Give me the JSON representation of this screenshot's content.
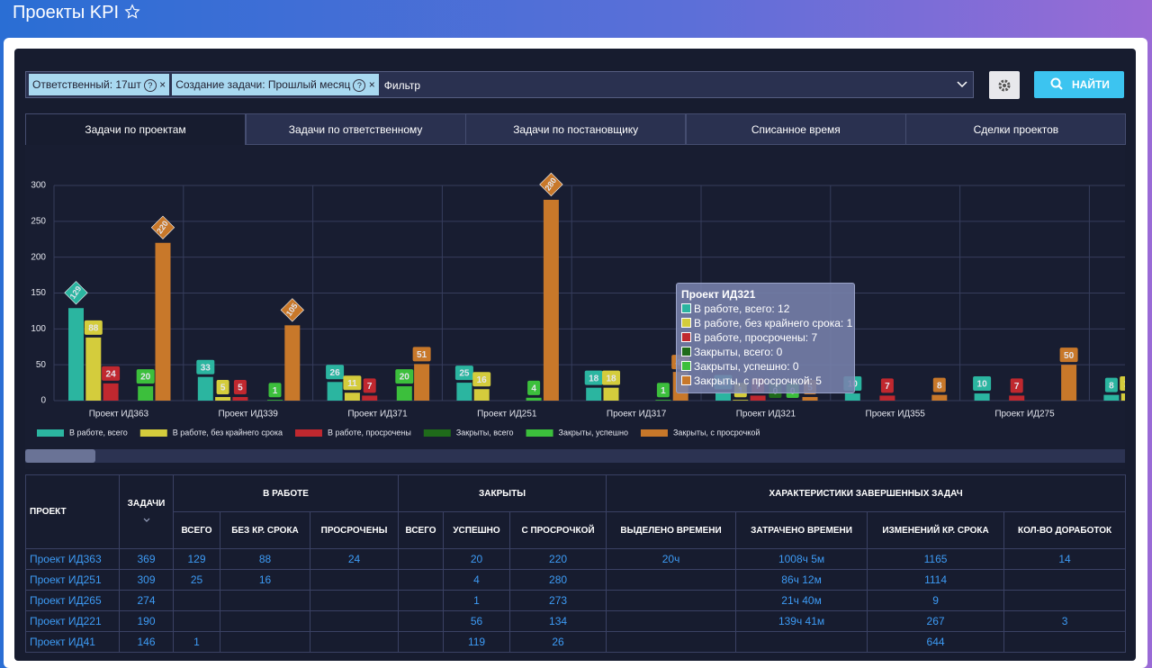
{
  "header": {
    "title": "Проекты KPI"
  },
  "filter": {
    "chips": [
      "Ответственный: 17шт",
      "Создание задачи: Прошлый месяц"
    ],
    "placeholder": "Фильтр"
  },
  "search_button": "НАЙТИ",
  "tabs": [
    "Задачи по проектам",
    "Задачи по ответственному",
    "Задачи по постановщику",
    "Списанное время",
    "Сделки проектов"
  ],
  "chart_data": {
    "type": "bar",
    "categories": [
      "Проект ИД363",
      "Проект ИД339",
      "Проект ИД371",
      "Проект ИД251",
      "Проект ИД317",
      "Проект ИД321",
      "Проект ИД355",
      "Проект ИД275",
      null
    ],
    "series": [
      {
        "name": "В работе, всего",
        "color": "#2bb5a0",
        "values": [
          129,
          33,
          26,
          25,
          18,
          12,
          10,
          10,
          8
        ]
      },
      {
        "name": "В работе, без крайнего срока",
        "color": "#d4cc3c",
        "values": [
          88,
          5,
          11,
          16,
          18,
          1,
          null,
          null,
          10
        ]
      },
      {
        "name": "В работе, просрочены",
        "color": "#c0282f",
        "values": [
          24,
          5,
          7,
          null,
          null,
          7,
          7,
          7,
          null
        ]
      },
      {
        "name": "Закрыты, всего",
        "color": "#1f6b1a",
        "values": [
          null,
          null,
          null,
          null,
          null,
          0,
          null,
          null,
          null
        ]
      },
      {
        "name": "Закрыты, успешно",
        "color": "#3cbf3c",
        "values": [
          20,
          1,
          20,
          4,
          1,
          0,
          null,
          null,
          null
        ]
      },
      {
        "name": "Закрыты, с просрочкой",
        "color": "#c8782a",
        "values": [
          220,
          105,
          51,
          280,
          40,
          5,
          8,
          50,
          null
        ]
      }
    ],
    "ylim": [
      0,
      300
    ],
    "yticks": [
      0,
      50,
      100,
      150,
      200,
      250,
      300
    ],
    "grid": true,
    "legend": "bottom-left"
  },
  "tooltip": {
    "title": "Проект ИД321",
    "items": [
      "В работе, всего: 12",
      "В работе, без крайнего срока: 1",
      "В работе, просрочены: 7",
      "Закрыты, всего: 0",
      "Закрыты, успешно: 0",
      "Закрыты, с просрочкой: 5"
    ]
  },
  "table": {
    "group_headers": [
      "ПРОЕКТ",
      "ЗАДАЧИ",
      "В РАБОТЕ",
      "ЗАКРЫТЫ",
      "ХАРАКТЕРИСТИКИ ЗАВЕРШЕННЫХ ЗАДАЧ"
    ],
    "sub_headers": [
      "ВСЕГО",
      "БЕЗ КР. СРОКА",
      "ПРОСРОЧЕНЫ",
      "ВСЕГО",
      "УСПЕШНО",
      "С ПРОСРОЧКОЙ",
      "ВЫДЕЛЕНО ВРЕМЕНИ",
      "ЗАТРАЧЕНО ВРЕМЕНИ",
      "ИЗМЕНЕНИЙ КР. СРОКА",
      "КОЛ-ВО ДОРАБОТОК"
    ],
    "rows": [
      [
        "Проект ИД363",
        369,
        129,
        88,
        24,
        null,
        20,
        220,
        "20ч",
        "1008ч 5м",
        1165,
        14
      ],
      [
        "Проект ИД251",
        309,
        25,
        16,
        null,
        null,
        4,
        280,
        null,
        "86ч 12м",
        1114,
        null
      ],
      [
        "Проект ИД265",
        274,
        null,
        null,
        null,
        null,
        1,
        273,
        null,
        "21ч 40м",
        9,
        null
      ],
      [
        "Проект ИД221",
        190,
        null,
        null,
        null,
        null,
        56,
        134,
        null,
        "139ч 41м",
        267,
        3
      ],
      [
        "Проект ИД41",
        146,
        1,
        null,
        null,
        null,
        119,
        26,
        null,
        null,
        644,
        null
      ]
    ]
  }
}
